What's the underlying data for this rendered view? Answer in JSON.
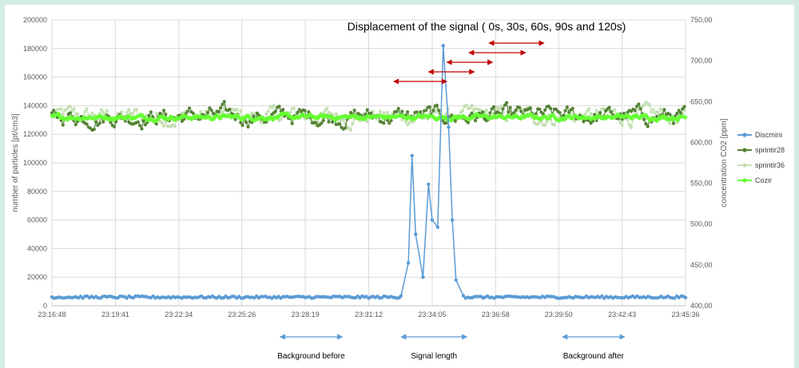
{
  "chart_data": {
    "type": "line",
    "title": "Displacement of the signal ( 0s, 30s, 60s, 90s and 120s)",
    "ylabel": "number of particles [pt/cm3]",
    "y2label": "concentration CO2 [ppm]",
    "xlabel": "",
    "x_ticks": [
      "23:16:48",
      "23:19:41",
      "23:22:34",
      "23:25:26",
      "23:28:19",
      "23:31:12",
      "23:34:05",
      "23:36:58",
      "23:39:50",
      "23:42:43",
      "23:45:36"
    ],
    "x_range": [
      "23:16:48",
      "23:45:36"
    ],
    "ylim": [
      0,
      200000
    ],
    "y_ticks": [
      "0",
      "20000",
      "40000",
      "60000",
      "80000",
      "100000",
      "120000",
      "140000",
      "160000",
      "180000",
      "200000"
    ],
    "y2lim": [
      400,
      750
    ],
    "y2_ticks": [
      "400,00",
      "450,00",
      "500,00",
      "550,00",
      "600,00",
      "650,00",
      "700,00",
      "750,00"
    ],
    "grid": true,
    "legend_position": "right",
    "series": [
      {
        "name": "Discmini",
        "axis": "left",
        "color": "#5b9bd5",
        "baseline": 6000,
        "peak_points": [
          [
            "23:32:40",
            7000
          ],
          [
            "23:33:00",
            30000
          ],
          [
            "23:33:10",
            105000
          ],
          [
            "23:33:20",
            50000
          ],
          [
            "23:33:40",
            20000
          ],
          [
            "23:33:55",
            85000
          ],
          [
            "23:34:05",
            60000
          ],
          [
            "23:34:20",
            55000
          ],
          [
            "23:34:35",
            182000
          ],
          [
            "23:34:50",
            125000
          ],
          [
            "23:35:00",
            60000
          ],
          [
            "23:35:10",
            18000
          ],
          [
            "23:35:30",
            7000
          ]
        ]
      },
      {
        "name": "sprintir28",
        "axis": "right",
        "color": "#548235",
        "mean": 632,
        "spread": 22
      },
      {
        "name": "sprintir36",
        "axis": "right",
        "color": "#c5e0b4",
        "mean": 632,
        "spread": 22
      },
      {
        "name": "Cozir",
        "axis": "right",
        "color": "#66ff33",
        "mean": 631,
        "spread": 6
      }
    ],
    "arrows_red": [
      {
        "from": "23:32:20",
        "to": "23:34:45"
      },
      {
        "from": "23:33:55",
        "to": "23:36:00"
      },
      {
        "from": "23:34:45",
        "to": "23:36:50"
      },
      {
        "from": "23:35:45",
        "to": "23:38:20"
      },
      {
        "from": "23:36:40",
        "to": "23:39:10"
      }
    ],
    "annotations": [
      {
        "label": "Background before",
        "from": "23:27:10",
        "to": "23:30:00"
      },
      {
        "label": "Signal length",
        "from": "23:32:40",
        "to": "23:35:40"
      },
      {
        "label": "Background after",
        "from": "23:40:00",
        "to": "23:42:50"
      }
    ]
  }
}
